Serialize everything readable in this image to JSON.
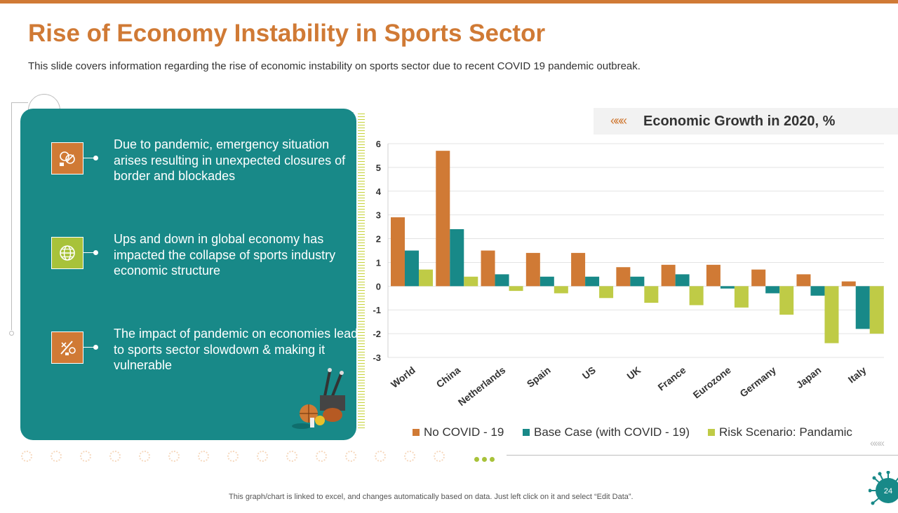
{
  "slide": {
    "title": "Rise of Economy Instability in Sports Sector",
    "subtitle": "This slide covers information regarding the rise of economic instability on sports sector due to recent COVID 19 pandemic outbreak.",
    "footer_note": "This graph/chart is linked to excel,  and changes automatically based on data. Just left click on it and select “Edit Data”.",
    "page_number": "24"
  },
  "panel": {
    "items": [
      {
        "text": "Due to pandemic, emergency situation arises resulting in unexpected closures of border and blockades",
        "icon": "border-closure-icon",
        "icon_bg": "#D07A35"
      },
      {
        "text": "Ups and down in global economy has impacted the collapse of sports industry economic structure",
        "icon": "globe-economy-icon",
        "icon_bg": "#A8C23A"
      },
      {
        "text": "The impact of pandemic on economies leads to sports sector slowdown & making it vulnerable",
        "icon": "sports-equipment-icon",
        "icon_bg": "#D07A35"
      }
    ]
  },
  "colors": {
    "accent": "#D07A35",
    "teal": "#188988",
    "lime": "#A8C23A",
    "series": [
      "#D07A35",
      "#188988",
      "#BFCB46"
    ]
  },
  "chart_header": {
    "chevrons": "«««",
    "title": "Economic  Growth in 2020, %"
  },
  "chart_data": {
    "type": "bar",
    "title": "Economic  Growth in 2020, %",
    "xlabel": "",
    "ylabel": "",
    "ylim": [
      -3,
      6
    ],
    "yticks": [
      6,
      5,
      4,
      3,
      2,
      1,
      0,
      -1,
      -2,
      -3
    ],
    "grid": true,
    "legend_position": "bottom",
    "categories": [
      "World",
      "China",
      "Netherlands",
      "Spain",
      "US",
      "UK",
      "France",
      "Eurozone",
      "Germany",
      "Japan",
      "Italy"
    ],
    "series": [
      {
        "name": "No COVID - 19",
        "values": [
          2.9,
          5.7,
          1.5,
          1.4,
          1.4,
          0.8,
          0.9,
          0.9,
          0.7,
          0.5,
          0.2
        ]
      },
      {
        "name": "Base Case (with COVID - 19)",
        "values": [
          1.5,
          2.4,
          0.5,
          0.4,
          0.4,
          0.4,
          0.5,
          -0.1,
          -0.3,
          -0.4,
          -1.8
        ]
      },
      {
        "name": "Risk Scenario: Pandamic",
        "values": [
          0.7,
          0.4,
          -0.2,
          -0.3,
          -0.5,
          -0.7,
          -0.8,
          -0.9,
          -1.2,
          -2.4,
          -2.0
        ]
      }
    ]
  }
}
